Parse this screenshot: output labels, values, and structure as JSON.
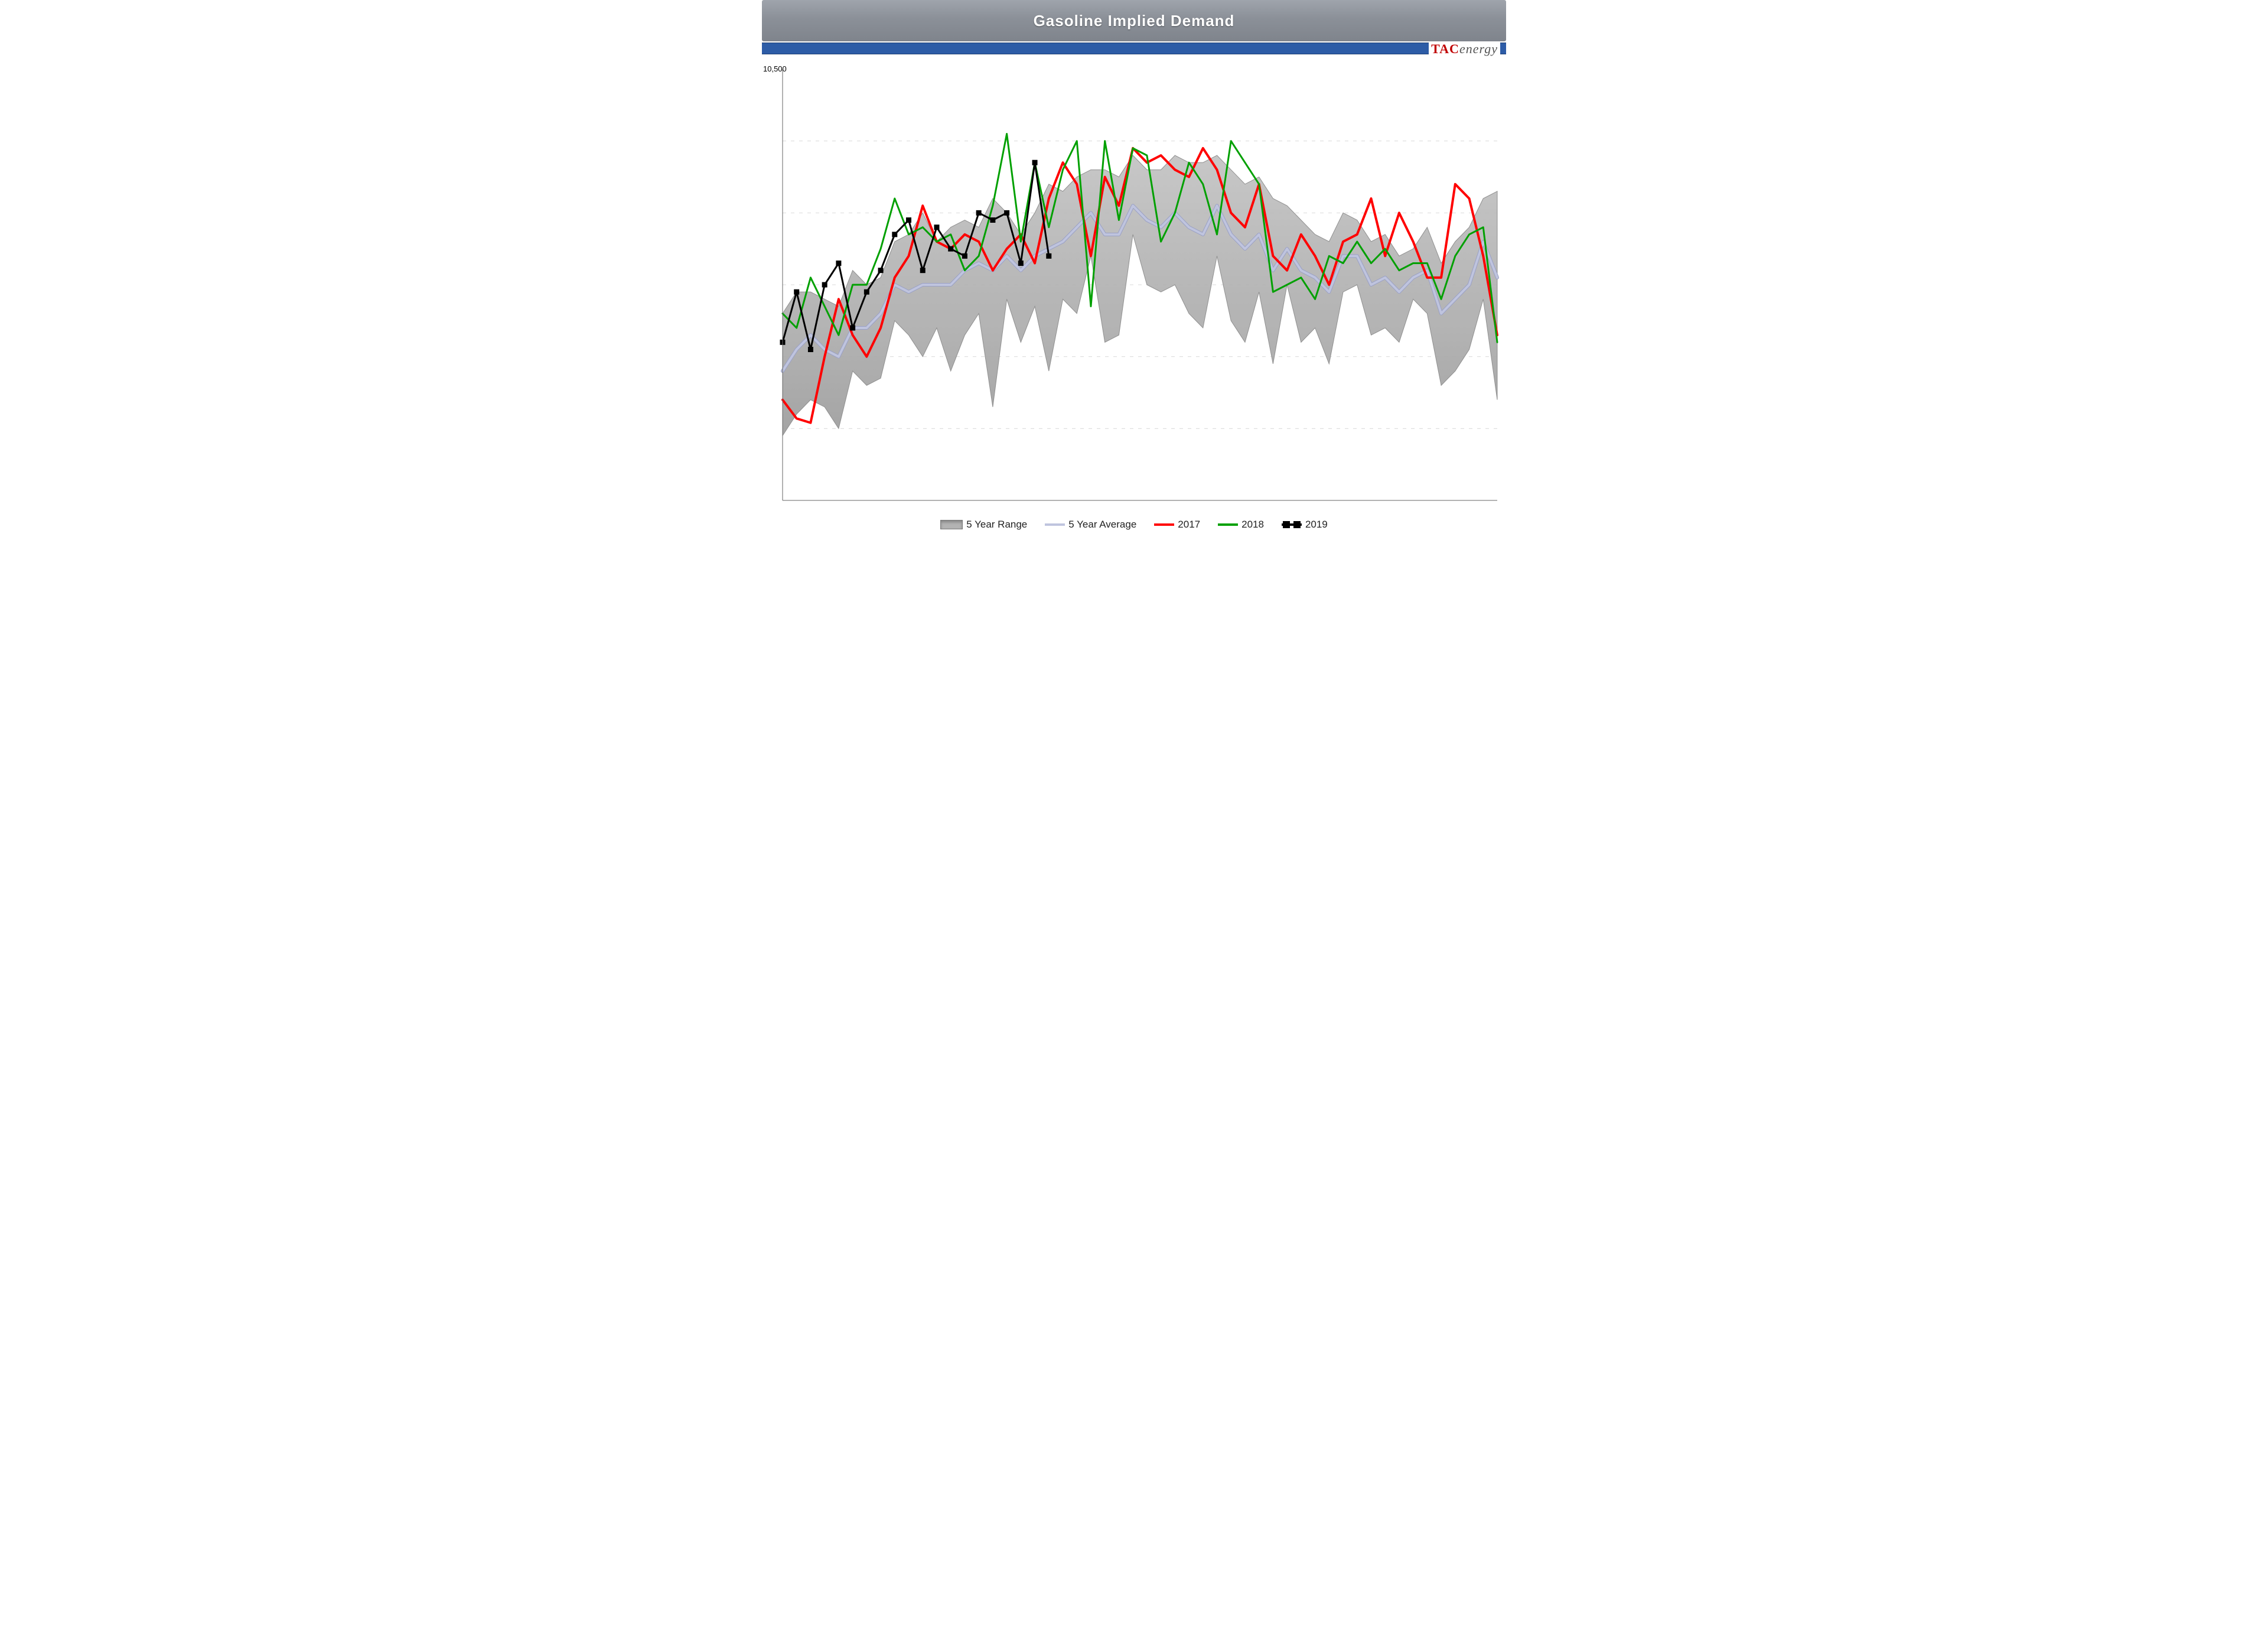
{
  "chart": {
    "type": "line-with-band",
    "title": "Gasoline Implied Demand",
    "logo_text_tac": "TAC",
    "logo_text_rest": "energy",
    "title_fontsize": 26,
    "title_color": "#ffffff",
    "title_bar_gradient": [
      "#9fa4ac",
      "#8b9098",
      "#7f848c"
    ],
    "divider_color": "#2d5ca6",
    "background_color": "#ffffff",
    "grid_color": "#d9d9d9",
    "label_fontsize": 17,
    "ylim": [
      7500,
      10500
    ],
    "ygrid": [
      8000,
      8500,
      9000,
      9500,
      10000
    ],
    "ytop_label": "10,500",
    "n_weeks": 52,
    "range_band_color": "#b3b3b3",
    "range_band_stroke": "#8a8a8a",
    "series": {
      "range_hi": [
        8800,
        8950,
        8950,
        8900,
        8850,
        9100,
        9000,
        9050,
        9300,
        9350,
        9500,
        9300,
        9400,
        9450,
        9400,
        9600,
        9500,
        9350,
        9500,
        9700,
        9650,
        9750,
        9800,
        9800,
        9750,
        9900,
        9800,
        9800,
        9900,
        9850,
        9850,
        9900,
        9800,
        9700,
        9750,
        9600,
        9550,
        9450,
        9350,
        9300,
        9500,
        9450,
        9300,
        9350,
        9200,
        9250,
        9400,
        9150,
        9300,
        9400,
        9600,
        9650
      ],
      "range_lo": [
        7950,
        8100,
        8200,
        8150,
        8000,
        8400,
        8300,
        8350,
        8750,
        8650,
        8500,
        8700,
        8400,
        8650,
        8800,
        8150,
        8900,
        8600,
        8850,
        8400,
        8900,
        8800,
        9200,
        8600,
        8650,
        9350,
        9000,
        8950,
        9000,
        8800,
        8700,
        9200,
        8750,
        8600,
        8950,
        8450,
        9000,
        8600,
        8700,
        8450,
        8950,
        9000,
        8650,
        8700,
        8600,
        8900,
        8800,
        8300,
        8400,
        8550,
        8900,
        8200
      ],
      "avg": [
        8400,
        8550,
        8650,
        8550,
        8500,
        8700,
        8700,
        8800,
        9000,
        8950,
        9000,
        9000,
        9000,
        9100,
        9150,
        9100,
        9200,
        9100,
        9200,
        9250,
        9300,
        9400,
        9500,
        9350,
        9350,
        9550,
        9450,
        9400,
        9500,
        9400,
        9350,
        9550,
        9350,
        9250,
        9350,
        9100,
        9250,
        9100,
        9050,
        8950,
        9200,
        9200,
        9000,
        9050,
        8950,
        9050,
        9100,
        8800,
        8900,
        9000,
        9300,
        9050
      ],
      "y2017": [
        8200,
        8070,
        8040,
        8500,
        8900,
        8650,
        8500,
        8700,
        9050,
        9200,
        9550,
        9300,
        9250,
        9350,
        9300,
        9100,
        9250,
        9350,
        9150,
        9600,
        9850,
        9700,
        9200,
        9750,
        9550,
        9950,
        9850,
        9900,
        9800,
        9750,
        9950,
        9800,
        9500,
        9400,
        9700,
        9200,
        9100,
        9350,
        9200,
        9000,
        9300,
        9350,
        9600,
        9200,
        9500,
        9300,
        9050,
        9050,
        9700,
        9600,
        9200,
        8650
      ],
      "y2018": [
        8800,
        8700,
        9050,
        8850,
        8650,
        9000,
        9000,
        9250,
        9600,
        9350,
        9400,
        9300,
        9350,
        9100,
        9200,
        9550,
        10050,
        9300,
        9850,
        9400,
        9800,
        10000,
        8850,
        10000,
        9450,
        9950,
        9900,
        9300,
        9500,
        9850,
        9700,
        9350,
        10000,
        9850,
        9700,
        8950,
        9000,
        9050,
        8900,
        9200,
        9150,
        9300,
        9150,
        9250,
        9100,
        9150,
        9150,
        8900,
        9200,
        9350,
        9400,
        8600
      ],
      "y2019": [
        8600,
        8950,
        8550,
        9000,
        9150,
        8700,
        8950,
        9100,
        9350,
        9450,
        9100,
        9400,
        9250,
        9200,
        9500,
        9450,
        9500,
        9150,
        9850,
        9200
      ]
    },
    "styles": {
      "avg": {
        "label": "5 Year Average",
        "color": "#bfc4de",
        "width": 4
      },
      "range": {
        "label": "5 Year Range"
      },
      "y2017": {
        "label": "2017",
        "color": "#ff0000",
        "width": 4
      },
      "y2018": {
        "label": "2018",
        "color": "#00a000",
        "width": 3
      },
      "y2019": {
        "label": "2019",
        "color": "#000000",
        "width": 3,
        "marker": "square",
        "marker_size": 8
      }
    }
  }
}
